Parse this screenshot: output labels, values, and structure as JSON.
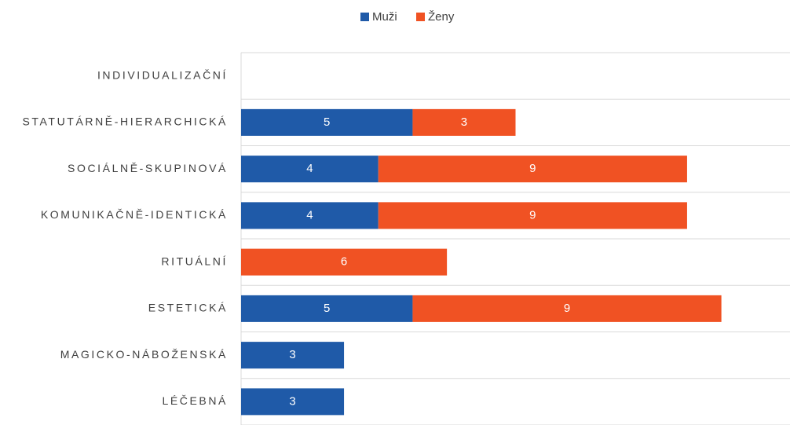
{
  "chart_data": {
    "type": "stacked-bar-horizontal",
    "categories": [
      "INDIVIDUALIZAČNÍ",
      "STATUTÁRNĚ-HIERARCHICKÁ",
      "SOCIÁLNĚ-SKUPINOVÁ",
      "KOMUNIKAČNĚ-IDENTICKÁ",
      "RITUÁLNÍ",
      "ESTETICKÁ",
      "MAGICKO-NÁBOŽENSKÁ",
      "LÉČEBNÁ"
    ],
    "series": [
      {
        "name": "Muži",
        "color": "#1f5aa8",
        "values": [
          null,
          5,
          4,
          4,
          null,
          5,
          3,
          3
        ]
      },
      {
        "name": "Ženy",
        "color": "#f05223",
        "values": [
          null,
          3,
          9,
          9,
          6,
          9,
          null,
          null
        ]
      }
    ],
    "xlim": [
      0,
      16
    ],
    "legend": "top",
    "grid": true
  }
}
